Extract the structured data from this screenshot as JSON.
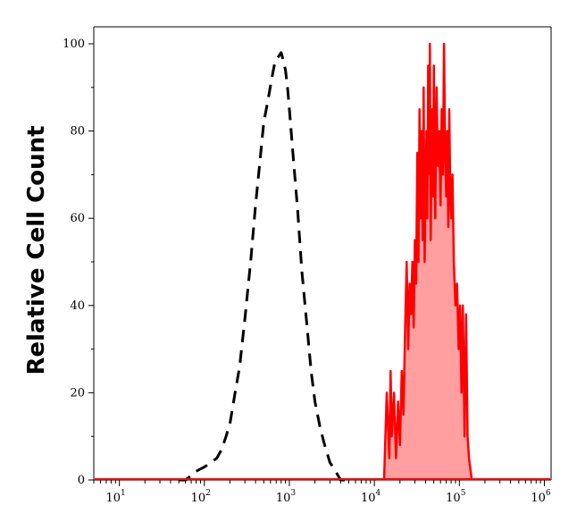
{
  "chart_data": {
    "type": "area",
    "title": "",
    "xlabel": "",
    "ylabel": "Relative Cell Count",
    "x_scale": "log",
    "xlim": [
      5,
      1200000
    ],
    "ylim": [
      -1,
      100
    ],
    "grid": false,
    "legend": "none",
    "x_ticks": [
      {
        "value": 10,
        "base": "10",
        "exp": "1"
      },
      {
        "value": 100,
        "base": "10",
        "exp": "2"
      },
      {
        "value": 1000,
        "base": "10",
        "exp": "3"
      },
      {
        "value": 10000,
        "base": "10",
        "exp": "4"
      },
      {
        "value": 100000,
        "base": "10",
        "exp": "5"
      },
      {
        "value": 1000000,
        "base": "10",
        "exp": "6"
      }
    ],
    "y_ticks": [
      {
        "value": 0,
        "label": "0"
      },
      {
        "value": 20,
        "label": "20"
      },
      {
        "value": 40,
        "label": "40"
      },
      {
        "value": 60,
        "label": "60"
      },
      {
        "value": 80,
        "label": "80"
      },
      {
        "value": 100,
        "label": "100"
      }
    ],
    "series": [
      {
        "style": "dashed",
        "color": "#000000",
        "fill": "none",
        "x": [
          50,
          60,
          70,
          80,
          100,
          120,
          140,
          160,
          180,
          200,
          230,
          260,
          300,
          350,
          400,
          450,
          500,
          560,
          620,
          680,
          740,
          800,
          850,
          900,
          950,
          1000,
          1100,
          1250,
          1400,
          1600,
          1800,
          2000,
          2300,
          2600,
          3000,
          3500,
          4000,
          4500
        ],
        "y": [
          0,
          0,
          1,
          2,
          3,
          4,
          5,
          7,
          10,
          13,
          20,
          26,
          37,
          50,
          63,
          73,
          82,
          87,
          92,
          96,
          97,
          98,
          96,
          94,
          90,
          85,
          75,
          62,
          48,
          36,
          25,
          18,
          12,
          8,
          4,
          2,
          0,
          0
        ]
      },
      {
        "style": "solid",
        "color": "#ff0000",
        "fill": "#ff9f9f",
        "x": [
          13000,
          14000,
          15000,
          15500,
          16000,
          17000,
          18000,
          19000,
          20000,
          21000,
          22000,
          23000,
          24000,
          25000,
          26000,
          27000,
          28000,
          29000,
          30000,
          31000,
          32000,
          33000,
          34000,
          35000,
          36000,
          37000,
          38000,
          39000,
          40000,
          41000,
          42000,
          43000,
          44000,
          45000,
          46000,
          47000,
          48000,
          49000,
          50000,
          52000,
          54000,
          56000,
          58000,
          60000,
          62000,
          64000,
          66000,
          68000,
          70000,
          72000,
          74000,
          76000,
          78000,
          80000,
          83000,
          86000,
          90000,
          94000,
          98000,
          102000,
          106000,
          110000,
          115000,
          120000,
          125000,
          130000,
          140000
        ],
        "y": [
          0,
          20,
          5,
          25,
          10,
          20,
          5,
          18,
          8,
          25,
          15,
          35,
          50,
          30,
          45,
          38,
          50,
          35,
          55,
          45,
          75,
          50,
          85,
          60,
          80,
          55,
          90,
          50,
          65,
          80,
          60,
          95,
          70,
          100,
          55,
          75,
          85,
          65,
          95,
          60,
          90,
          72,
          80,
          63,
          85,
          70,
          100,
          75,
          65,
          80,
          58,
          85,
          68,
          60,
          70,
          50,
          40,
          45,
          30,
          40,
          20,
          40,
          10,
          38,
          10,
          5,
          0
        ]
      }
    ]
  }
}
